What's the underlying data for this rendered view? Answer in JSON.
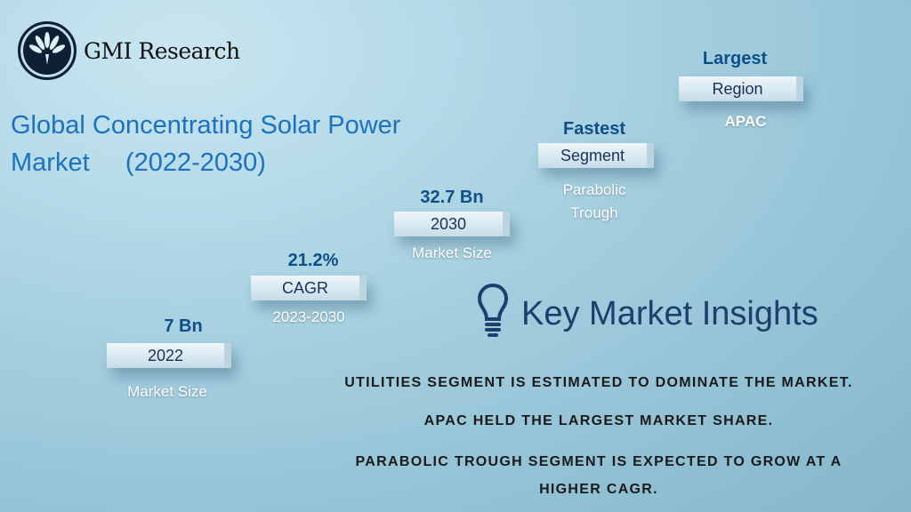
{
  "logo": {
    "name": "GMI Research"
  },
  "title": {
    "line1": "Global Concentrating Solar Power",
    "line2": "Market     (2022-2030)"
  },
  "steps": [
    {
      "value": "7 Bn",
      "label": "2022",
      "caption": "Market Size"
    },
    {
      "value": "21.2%",
      "label": "CAGR",
      "caption": "2023-2030"
    },
    {
      "value": "32.7 Bn",
      "label": "2030",
      "caption": "Market Size"
    },
    {
      "value": "Fastest",
      "label": "Segment",
      "caption": "Parabolic Trough"
    },
    {
      "value": "Largest",
      "label": "Region",
      "caption": "APAC"
    }
  ],
  "insights": {
    "heading": "Key Market Insights",
    "items": [
      "UTILITIES SEGMENT IS ESTIMATED TO DOMINATE THE MARKET.",
      "APAC HELD THE LARGEST MARKET SHARE.",
      "PARABOLIC TROUGH SEGMENT IS EXPECTED TO GROW AT A HIGHER CAGR."
    ]
  }
}
